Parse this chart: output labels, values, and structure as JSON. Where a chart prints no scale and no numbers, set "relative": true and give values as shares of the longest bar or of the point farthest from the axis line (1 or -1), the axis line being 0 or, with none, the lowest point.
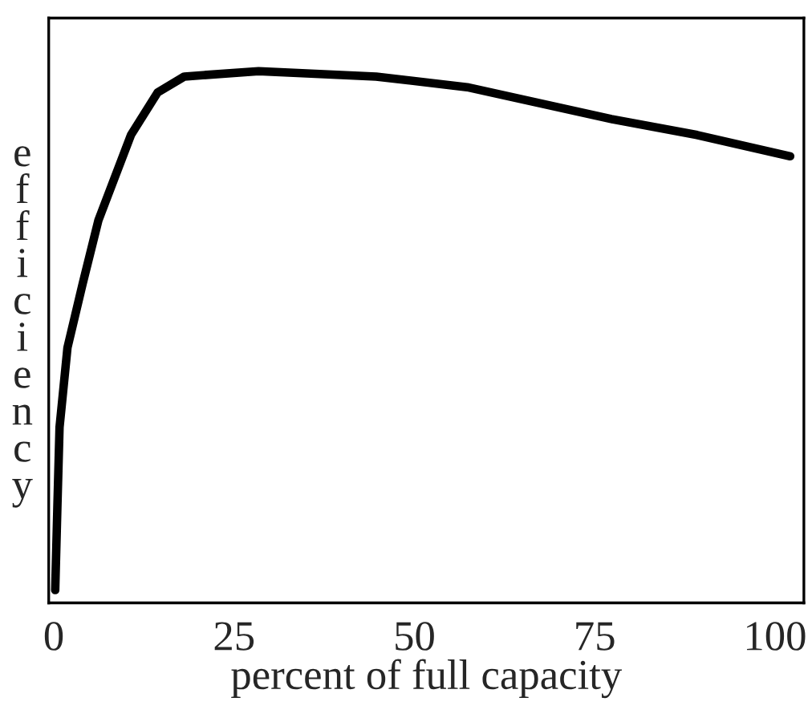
{
  "chart_data": {
    "type": "line",
    "relative": true,
    "xlabel": "percent of full capacity",
    "ylabel": "efficiency",
    "x": [
      0.2,
      0.5,
      0.8,
      1.9,
      4.0,
      6.2,
      10.7,
      14.4,
      18.1,
      28.4,
      44.7,
      57.3,
      77.3,
      89.2,
      102.1
    ],
    "series": [
      {
        "color": "#000000",
        "values": [
          0.024,
          0.18,
          0.33,
          0.48,
          0.6,
          0.72,
          0.88,
          0.96,
          0.99,
          1.0,
          0.99,
          0.97,
          0.91,
          0.88,
          0.84
        ]
      }
    ],
    "xlim": [
      -0.7,
      104
    ],
    "xticks": [
      0,
      25,
      50,
      75,
      100
    ],
    "grid": false,
    "legend": false,
    "marker": "none",
    "line_style": "solid"
  }
}
